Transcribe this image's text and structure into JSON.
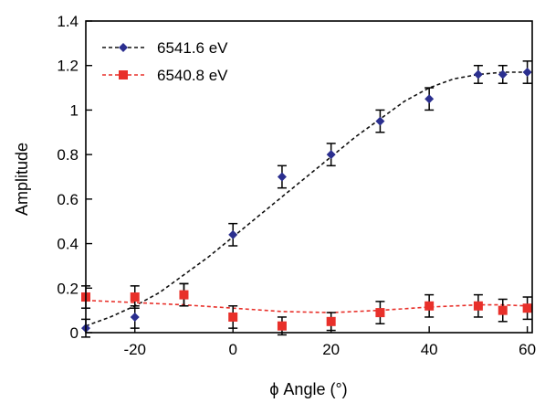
{
  "chart_data": {
    "type": "scatter",
    "xlabel": "ϕ Angle (°)",
    "ylabel": "Amplitude",
    "xlim": [
      -30,
      61
    ],
    "ylim": [
      0,
      1.4
    ],
    "xticks": [
      -20,
      0,
      20,
      40,
      60
    ],
    "xtick_labels": [
      "-20",
      "0",
      "20",
      "40",
      "60"
    ],
    "yticks": [
      0,
      0.2,
      0.4,
      0.6,
      0.8,
      1,
      1.2,
      1.4
    ],
    "ytick_labels": [
      "0",
      "0.2",
      "0.4",
      "0.6",
      "0.8",
      "1",
      "1.2",
      "1.4"
    ],
    "grid": false,
    "legend_position": "top-left",
    "series": [
      {
        "name": "6541.6 eV",
        "color": "#2b2f8f",
        "line_color": "#111111",
        "marker": "diamond",
        "x": [
          -30,
          -20,
          -10,
          0,
          10,
          20,
          30,
          40,
          50,
          55,
          60
        ],
        "y": [
          0.02,
          0.07,
          0.17,
          0.44,
          0.7,
          0.8,
          0.95,
          1.05,
          1.16,
          1.16,
          1.17
        ],
        "err": [
          0.04,
          0.05,
          0.05,
          0.05,
          0.05,
          0.05,
          0.05,
          0.05,
          0.04,
          0.04,
          0.05
        ],
        "fit_x": [
          -30,
          -25,
          -20,
          -15,
          -10,
          -5,
          0,
          5,
          10,
          15,
          20,
          25,
          30,
          35,
          40,
          45,
          50,
          55,
          60
        ],
        "fit_y": [
          0.03,
          0.07,
          0.12,
          0.18,
          0.26,
          0.34,
          0.43,
          0.52,
          0.61,
          0.7,
          0.79,
          0.88,
          0.96,
          1.04,
          1.1,
          1.14,
          1.16,
          1.17,
          1.17
        ]
      },
      {
        "name": "6540.8 eV",
        "color": "#e8302a",
        "line_color": "#e8302a",
        "marker": "square",
        "x": [
          -30,
          -20,
          -10,
          0,
          10,
          20,
          30,
          40,
          50,
          55,
          60
        ],
        "y": [
          0.16,
          0.16,
          0.17,
          0.07,
          0.03,
          0.05,
          0.09,
          0.12,
          0.12,
          0.1,
          0.11
        ],
        "err": [
          0.05,
          0.05,
          0.05,
          0.05,
          0.04,
          0.04,
          0.05,
          0.05,
          0.05,
          0.05,
          0.05
        ],
        "fit_x": [
          -30,
          -20,
          -10,
          0,
          10,
          20,
          30,
          40,
          50,
          55,
          60
        ],
        "fit_y": [
          0.145,
          0.135,
          0.125,
          0.11,
          0.095,
          0.09,
          0.1,
          0.115,
          0.125,
          0.125,
          0.12
        ]
      }
    ]
  }
}
